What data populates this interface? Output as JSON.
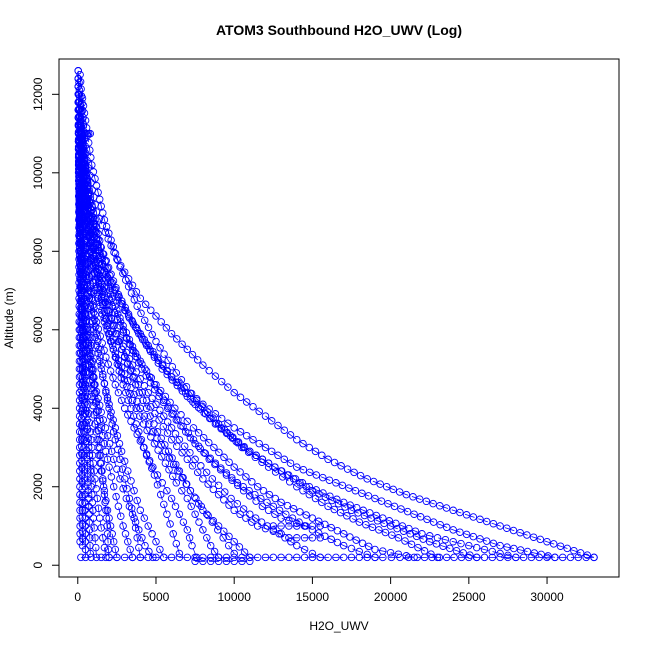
{
  "chart_data": {
    "type": "scatter",
    "title": "ATOM3 Southbound H2O_UWV (Log)",
    "xlabel": "H2O_UWV",
    "ylabel": "Altitude (m)",
    "xlim": [
      -1200,
      34600
    ],
    "ylim": [
      -300,
      12900
    ],
    "x_ticks": [
      0,
      5000,
      10000,
      15000,
      20000,
      25000,
      30000
    ],
    "x_tick_labels": [
      "0",
      "5000",
      "10000",
      "15000",
      "20000",
      "25000",
      "30000"
    ],
    "y_ticks": [
      0,
      2000,
      4000,
      6000,
      8000,
      10000,
      12000
    ],
    "y_tick_labels": [
      "0",
      "2000",
      "4000",
      "6000",
      "8000",
      "10000",
      "12000"
    ],
    "grid": false,
    "legend": "none",
    "marker": "open-circle",
    "line_style": "dashed",
    "color": "#0000ff",
    "series": [
      {
        "x": [
          33000,
          30000,
          27000,
          24000,
          21000,
          18500,
          16000,
          14000,
          12000,
          10000,
          8000,
          6000,
          4000,
          2500,
          1200,
          500,
          150
        ],
        "y": [
          200,
          600,
          1000,
          1400,
          1800,
          2200,
          2700,
          3200,
          3800,
          4400,
          5100,
          5900,
          6800,
          7800,
          9000,
          10500,
          12500
        ]
      },
      {
        "x": [
          30500,
          27000,
          24000,
          21500,
          19000,
          16500,
          14000,
          12000,
          10000,
          8000,
          6000,
          4500,
          3000,
          1700,
          800,
          300,
          100
        ],
        "y": [
          200,
          500,
          900,
          1300,
          1700,
          2100,
          2500,
          3000,
          3500,
          4100,
          4800,
          5600,
          6500,
          7500,
          8700,
          10100,
          12000
        ]
      },
      {
        "x": [
          25500,
          22500,
          20000,
          17500,
          15000,
          13000,
          11000,
          9200,
          7500,
          6000,
          4600,
          3300,
          2200,
          1300,
          600,
          200
        ],
        "y": [
          200,
          600,
          1000,
          1400,
          1900,
          2400,
          2900,
          3500,
          4100,
          4800,
          5500,
          6300,
          7200,
          8300,
          9600,
          11200
        ]
      },
      {
        "x": [
          21500,
          19000,
          17000,
          15000,
          13000,
          11500,
          10000,
          8700,
          7400,
          6200,
          5000,
          3800,
          2700,
          1700,
          900,
          300,
          100
        ],
        "y": [
          200,
          400,
          800,
          1200,
          1600,
          2000,
          2500,
          3000,
          3500,
          4000,
          4600,
          5300,
          6100,
          7100,
          8300,
          9800,
          11600
        ]
      },
      {
        "x": [
          15500,
          14000,
          12500,
          11000,
          9800,
          8600,
          7500,
          6500,
          5500,
          4500,
          3500,
          2500,
          1600,
          900,
          400,
          100
        ],
        "y": [
          200,
          500,
          900,
          1300,
          1700,
          2200,
          2700,
          3200,
          3800,
          4400,
          5100,
          5900,
          6900,
          8000,
          9400,
          11000
        ]
      },
      {
        "x": [
          13000,
          11500,
          10000,
          9000,
          8000,
          7000,
          6000,
          5200,
          4400,
          3600,
          2800,
          2000,
          1300,
          700,
          250
        ],
        "y": [
          800,
          1000,
          1400,
          1800,
          2200,
          2700,
          3200,
          3700,
          4200,
          4800,
          5500,
          6300,
          7300,
          8600,
          10200
        ]
      },
      {
        "x": [
          11000,
          10000,
          9000,
          8000,
          7200,
          6400,
          5600,
          4800,
          4000,
          3200,
          2400,
          1700,
          1000,
          500,
          150
        ],
        "y": [
          200,
          600,
          1000,
          1400,
          1900,
          2400,
          2900,
          3400,
          4000,
          4700,
          5400,
          6200,
          7200,
          8500,
          10300
        ]
      },
      {
        "x": [
          9000,
          8500,
          8000,
          7500,
          7000,
          6300,
          5600,
          4900,
          4200,
          3500,
          2800,
          2100,
          1400,
          800,
          300
        ],
        "y": [
          200,
          500,
          900,
          1300,
          1700,
          2100,
          2600,
          3100,
          3600,
          4200,
          4900,
          5700,
          6700,
          8000,
          9700
        ]
      },
      {
        "x": [
          7600,
          7300,
          7000,
          6500,
          6000,
          5400,
          4800,
          4200,
          3600,
          3000,
          2400,
          1800,
          1200,
          700,
          250,
          80
        ],
        "y": [
          200,
          500,
          900,
          1300,
          1700,
          2100,
          2500,
          3000,
          3500,
          4000,
          4600,
          5300,
          6200,
          7300,
          8800,
          10600
        ]
      },
      {
        "x": [
          5500,
          5000,
          4500,
          4000,
          3600,
          3200,
          2800,
          2400,
          2000,
          1600,
          1200,
          800,
          450,
          200,
          60
        ],
        "y": [
          200,
          600,
          1000,
          1400,
          1900,
          2400,
          2900,
          3500,
          4100,
          4800,
          5600,
          6600,
          7800,
          9300,
          11200
        ]
      },
      {
        "x": [
          4800,
          4300,
          3900,
          3500,
          3100,
          2700,
          2300,
          1900,
          1500,
          1100,
          750,
          450,
          200,
          70
        ],
        "y": [
          200,
          500,
          900,
          1300,
          1700,
          2200,
          2700,
          3300,
          3900,
          4600,
          5500,
          6600,
          8000,
          9800
        ]
      },
      {
        "x": [
          3500,
          3200,
          2900,
          2600,
          2300,
          2000,
          1700,
          1400,
          1100,
          800,
          550,
          300,
          120
        ],
        "y": [
          200,
          600,
          1000,
          1500,
          2000,
          2500,
          3100,
          3700,
          4400,
          5200,
          6200,
          7500,
          9200
        ]
      },
      {
        "x": [
          2500,
          2300,
          2100,
          1900,
          1700,
          1500,
          1300,
          1100,
          900,
          700,
          500,
          300,
          150,
          50
        ],
        "y": [
          200,
          600,
          1000,
          1400,
          1900,
          2400,
          3000,
          3600,
          4300,
          5100,
          6000,
          7200,
          8700,
          10600
        ]
      },
      {
        "x": [
          1800,
          1600,
          1400,
          1250,
          1100,
          950,
          800,
          650,
          500,
          380,
          260,
          150,
          60
        ],
        "y": [
          200,
          700,
          1200,
          1700,
          2200,
          2800,
          3400,
          4100,
          4900,
          5800,
          6900,
          8400,
          10300
        ]
      },
      {
        "x": [
          1200,
          1100,
          1000,
          900,
          800,
          700,
          600,
          500,
          400,
          300,
          200,
          120,
          50
        ],
        "y": [
          200,
          700,
          1200,
          1800,
          2400,
          3000,
          3700,
          4400,
          5200,
          6200,
          7400,
          9000,
          11000
        ]
      },
      {
        "x": [
          800,
          750,
          700,
          650,
          600,
          520,
          440,
          360,
          280,
          200,
          130,
          70,
          30
        ],
        "y": [
          300,
          900,
          1500,
          2100,
          2700,
          3400,
          4100,
          4900,
          5800,
          6900,
          8200,
          9900,
          11800
        ]
      },
      {
        "x": [
          500,
          480,
          450,
          420,
          380,
          340,
          300,
          250,
          200,
          150,
          100,
          60,
          30
        ],
        "y": [
          200,
          1000,
          1800,
          2600,
          3400,
          4200,
          5000,
          5900,
          6900,
          8000,
          9300,
          10800,
          12400
        ]
      },
      {
        "x": [
          300,
          290,
          270,
          250,
          230,
          200,
          170,
          140,
          110,
          80,
          50,
          30
        ],
        "y": [
          500,
          1400,
          2300,
          3200,
          4100,
          5000,
          6000,
          7100,
          8300,
          9600,
          11000,
          12600
        ]
      },
      {
        "x": [
          28000,
          25000,
          22000,
          19500,
          17000,
          14800,
          12600,
          10600,
          8800,
          7000,
          5400,
          3900,
          2600,
          1500,
          700,
          200
        ],
        "y": [
          200,
          500,
          800,
          1200,
          1600,
          2000,
          2500,
          3000,
          3600,
          4300,
          5000,
          5900,
          6900,
          8100,
          9500,
          11300
        ]
      },
      {
        "x": [
          23000,
          20500,
          18000,
          16000,
          14000,
          12200,
          10500,
          9000,
          7600,
          6300,
          5000,
          3800,
          2700,
          1700,
          900,
          300
        ],
        "y": [
          200,
          700,
          1100,
          1500,
          2000,
          2500,
          3000,
          3600,
          4200,
          4900,
          5700,
          6600,
          7600,
          8800,
          10200,
          11900
        ]
      },
      {
        "x": [
          19000,
          17000,
          15000,
          13300,
          11700,
          10200,
          8800,
          7500,
          6300,
          5200,
          4100,
          3100,
          2200,
          1400,
          700,
          200
        ],
        "y": [
          200,
          500,
          900,
          1300,
          1700,
          2100,
          2600,
          3100,
          3700,
          4300,
          5000,
          5800,
          6800,
          8000,
          9400,
          11200
        ]
      },
      {
        "x": [
          14500,
          13000,
          11800,
          10600,
          9500,
          8400,
          7400,
          6400,
          5500,
          4600,
          3700,
          2900,
          2100,
          1400,
          800,
          300,
          80
        ],
        "y": [
          1000,
          1200,
          1500,
          1900,
          2300,
          2700,
          3200,
          3700,
          4200,
          4800,
          5400,
          6100,
          6900,
          7900,
          9100,
          10600,
          12300
        ]
      },
      {
        "x": [
          10000,
          9300,
          8600,
          7900,
          7200,
          6500,
          5800,
          5100,
          4400,
          3700,
          3000,
          2300,
          1600,
          1000,
          500,
          150
        ],
        "y": [
          300,
          700,
          1100,
          1500,
          1900,
          2400,
          2900,
          3400,
          4000,
          4600,
          5300,
          6100,
          7000,
          8100,
          9500,
          11200
        ]
      },
      {
        "x": [
          6500,
          6100,
          5700,
          5300,
          4900,
          4400,
          3900,
          3400,
          2900,
          2400,
          1900,
          1400,
          900,
          500,
          200
        ],
        "y": [
          300,
          800,
          1300,
          1800,
          2300,
          2800,
          3400,
          4000,
          4600,
          5300,
          6100,
          7000,
          8100,
          9400,
          11000
        ]
      },
      {
        "x": [
          4000,
          3800,
          3600,
          3300,
          3000,
          2700,
          2400,
          2100,
          1800,
          1500,
          1200,
          900,
          600,
          350,
          150
        ],
        "y": [
          200,
          700,
          1200,
          1700,
          2200,
          2700,
          3200,
          3800,
          4400,
          5100,
          5900,
          6800,
          7900,
          9200,
          10900
        ]
      },
      {
        "x": [
          2000,
          1900,
          1800,
          1650,
          1500,
          1350,
          1200,
          1050,
          900,
          750,
          600,
          450,
          300,
          170,
          70
        ],
        "y": [
          200,
          800,
          1400,
          2000,
          2600,
          3200,
          3900,
          4600,
          5400,
          6200,
          7100,
          8100,
          9200,
          10500,
          12000
        ]
      },
      {
        "x": [
          150,
          140,
          130,
          120,
          110,
          100,
          90,
          80,
          70,
          60,
          50,
          40,
          30
        ],
        "y": [
          600,
          1600,
          2600,
          3600,
          4600,
          5600,
          6600,
          7600,
          8600,
          9600,
          10600,
          11600,
          12600
        ]
      },
      {
        "x": [
          200,
          1500,
          4000,
          5500,
          7500,
          9000,
          11000,
          13500,
          15500,
          19500,
          21700,
          25000,
          28500,
          31000,
          33000
        ],
        "y": [
          200,
          200,
          200,
          200,
          200,
          200,
          200,
          200,
          200,
          200,
          200,
          200,
          200,
          200,
          200
        ]
      },
      {
        "x": [
          12500,
          13500,
          14500,
          15500
        ],
        "y": [
          1000,
          1000,
          1000,
          1000
        ]
      },
      {
        "x": [
          13500,
          14500,
          15500
        ],
        "y": [
          700,
          700,
          700
        ]
      },
      {
        "x": [
          7500,
          8500,
          9500,
          10500,
          11000
        ],
        "y": [
          100,
          100,
          100,
          100,
          100
        ]
      },
      {
        "x": [
          400,
          500,
          600,
          700,
          800
        ],
        "y": [
          11000,
          11000,
          11000,
          11000,
          11000
        ]
      }
    ]
  }
}
